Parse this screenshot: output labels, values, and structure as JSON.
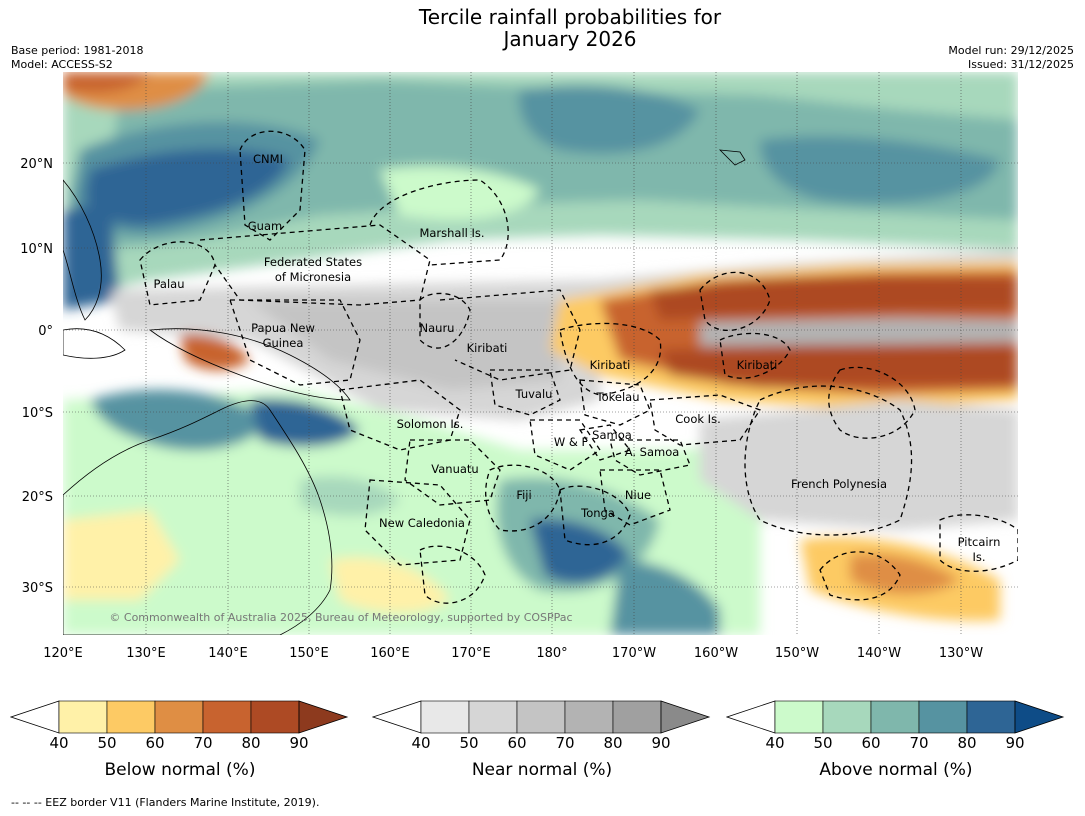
{
  "title_line1": "Tercile rainfall probabilities for",
  "title_line2": "January 2026",
  "meta_left": [
    "Base period: 1981-2018",
    "Model: ACCESS-S2"
  ],
  "meta_right": [
    "Model run: 29/12/2025",
    "Issued: 31/12/2025"
  ],
  "lat_ticks": [
    "20°N",
    "10°N",
    "0°",
    "10°S",
    "20°S",
    "30°S"
  ],
  "lon_ticks": [
    "120°E",
    "130°E",
    "140°E",
    "150°E",
    "160°E",
    "170°E",
    "180°",
    "170°W",
    "160°W",
    "150°W",
    "140°W",
    "130°W"
  ],
  "map_labels": {
    "cnmi": "CNMI",
    "guam": "Guam",
    "marshall": "Marshall Is.",
    "fsm1": "Federated States",
    "fsm2": "of Micronesia",
    "palau": "Palau",
    "png1": "Papua New",
    "png2": "Guinea",
    "nauru": "Nauru",
    "kiribati_w": "Kiribati",
    "kiribati_c": "Kiribati",
    "kiribati_e": "Kiribati",
    "tuvalu": "Tuvalu",
    "tokelau": "Tokelau",
    "cook": "Cook Is.",
    "solomon": "Solomon Is.",
    "wf": "W & F",
    "samoa": "Samoa",
    "asamoa": "A. Samoa",
    "vanuatu": "Vanuatu",
    "fiji": "Fiji",
    "niue": "Niue",
    "frpoly": "French Polynesia",
    "tonga": "Tonga",
    "newcal": "New Caledonia",
    "pitcairn1": "Pitcairn",
    "pitcairn2": "Is."
  },
  "copyright": "© Commonwealth of Australia 2025, Bureau of Meteorology, supported by COSPPac",
  "colorbars": [
    {
      "label": "Below normal (%)",
      "ticks": [
        "40",
        "50",
        "60",
        "70",
        "80",
        "90"
      ],
      "colors": [
        "#fff1a8",
        "#fdca64",
        "#df8e44",
        "#c8632f",
        "#ad4a24",
        "#8d3a1e"
      ]
    },
    {
      "label": "Near normal (%)",
      "ticks": [
        "40",
        "50",
        "60",
        "70",
        "80",
        "90"
      ],
      "colors": [
        "#e8e8e8",
        "#d6d6d6",
        "#c4c4c4",
        "#b3b3b3",
        "#a0a0a0",
        "#8a8a8a"
      ]
    },
    {
      "label": "Above normal (%)",
      "ticks": [
        "40",
        "50",
        "60",
        "70",
        "80",
        "90"
      ],
      "colors": [
        "#ccfacb",
        "#a7d8bc",
        "#7fb7ac",
        "#5693a1",
        "#2e6595",
        "#0e4c87"
      ]
    }
  ],
  "footnote": "-- -- -- EEZ border V11 (Flanders Marine Institute, 2019)."
}
